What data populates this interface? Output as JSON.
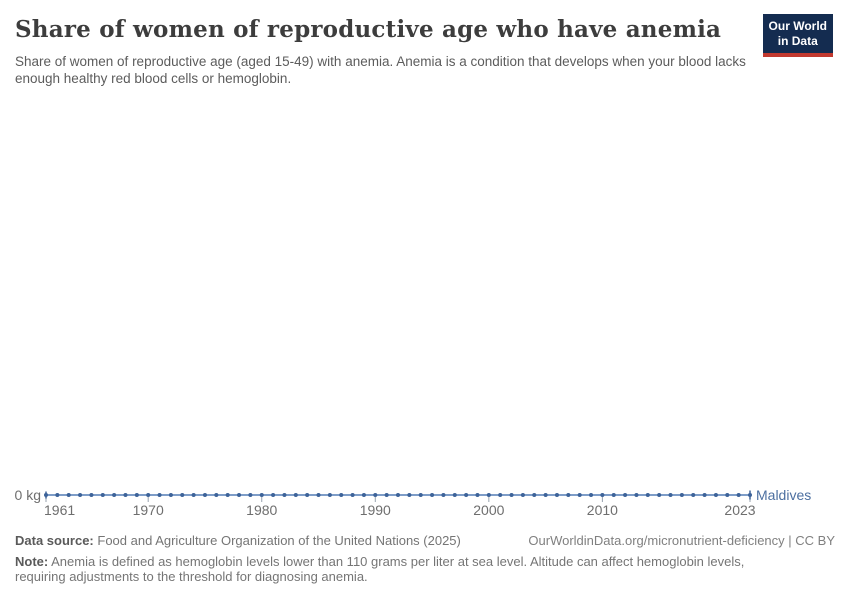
{
  "header": {
    "title": "Share of women of reproductive age who have anemia",
    "subtitle": "Share of women of reproductive age (aged 15-49) with anemia. Anemia is a condition that develops when your blood lacks enough healthy red blood cells or hemoglobin.",
    "logo": {
      "line1": "Our World",
      "line2": "in Data"
    }
  },
  "chart_data": {
    "type": "line",
    "title": "Share of women of reproductive age who have anemia",
    "x_range": [
      1961,
      2023
    ],
    "x_ticks": [
      1961,
      1970,
      1980,
      1990,
      2000,
      2010,
      2023
    ],
    "y_axis_label": "0 kg",
    "ylim": [
      0,
      0
    ],
    "grid": false,
    "legend_position": "entity label right of line end",
    "series": [
      {
        "name": "Maldives",
        "x": [
          1961,
          1962,
          1963,
          1964,
          1965,
          1966,
          1967,
          1968,
          1969,
          1970,
          1971,
          1972,
          1973,
          1974,
          1975,
          1976,
          1977,
          1978,
          1979,
          1980,
          1981,
          1982,
          1983,
          1984,
          1985,
          1986,
          1987,
          1988,
          1989,
          1990,
          1991,
          1992,
          1993,
          1994,
          1995,
          1996,
          1997,
          1998,
          1999,
          2000,
          2001,
          2002,
          2003,
          2004,
          2005,
          2006,
          2007,
          2008,
          2009,
          2010,
          2011,
          2012,
          2013,
          2014,
          2015,
          2016,
          2017,
          2018,
          2019,
          2020,
          2021,
          2022,
          2023
        ],
        "values": [
          0,
          0,
          0,
          0,
          0,
          0,
          0,
          0,
          0,
          0,
          0,
          0,
          0,
          0,
          0,
          0,
          0,
          0,
          0,
          0,
          0,
          0,
          0,
          0,
          0,
          0,
          0,
          0,
          0,
          0,
          0,
          0,
          0,
          0,
          0,
          0,
          0,
          0,
          0,
          0,
          0,
          0,
          0,
          0,
          0,
          0,
          0,
          0,
          0,
          0,
          0,
          0,
          0,
          0,
          0,
          0,
          0,
          0,
          0,
          0,
          0,
          0,
          0
        ]
      }
    ]
  },
  "colors": {
    "line": "#7E9DC8",
    "marker": "#3D6399",
    "entity_label": "#4C6FA0",
    "axis_tick": "#97A2AE",
    "axis_text": "#6e6e6e",
    "logo_bg": "#142C50",
    "logo_stripe": "#C2392F",
    "title_text": "#3d3d3d"
  },
  "footer": {
    "source_label": "Data source:",
    "source_text": "Food and Agriculture Organization of the United Nations (2025)",
    "attribution": "OurWorldinData.org/micronutrient-deficiency | CC BY",
    "note_label": "Note:",
    "note_text": "Anemia is defined as hemoglobin levels lower than 110 grams per liter at sea level. Altitude can affect hemoglobin levels, requiring adjustments to the threshold for diagnosing anemia."
  }
}
